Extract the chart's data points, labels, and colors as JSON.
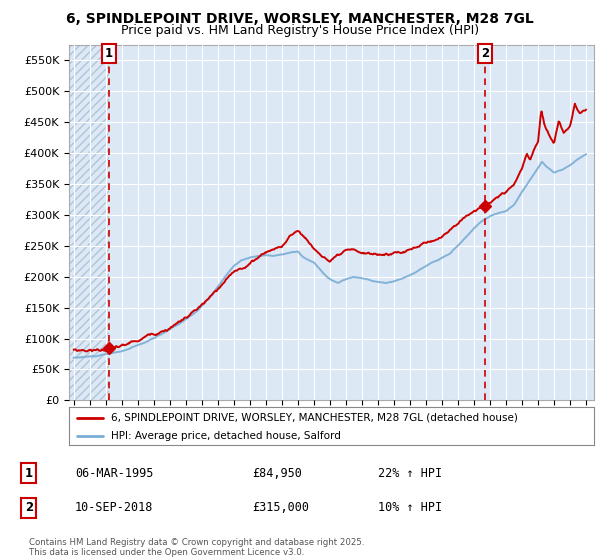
{
  "title1": "6, SPINDLEPOINT DRIVE, WORSLEY, MANCHESTER, M28 7GL",
  "title2": "Price paid vs. HM Land Registry's House Price Index (HPI)",
  "ylabel_ticks": [
    "£0",
    "£50K",
    "£100K",
    "£150K",
    "£200K",
    "£250K",
    "£300K",
    "£350K",
    "£400K",
    "£450K",
    "£500K",
    "£550K"
  ],
  "ytick_values": [
    0,
    50000,
    100000,
    150000,
    200000,
    250000,
    300000,
    350000,
    400000,
    450000,
    500000,
    550000
  ],
  "ylim": [
    0,
    575000
  ],
  "xlim_start": 1992.7,
  "xlim_end": 2025.5,
  "background_color": "#dce8f5",
  "hatch_color": "#c8d8ec",
  "grid_color": "#ffffff",
  "hpi_color": "#7aadd4",
  "price_color": "#cc0000",
  "point1_x": 1995.18,
  "point1_y": 84950,
  "point2_x": 2018.69,
  "point2_y": 315000,
  "annotation1": "1",
  "annotation2": "2",
  "legend_line1": "6, SPINDLEPOINT DRIVE, WORSLEY, MANCHESTER, M28 7GL (detached house)",
  "legend_line2": "HPI: Average price, detached house, Salford",
  "table_row1_num": "1",
  "table_row1_date": "06-MAR-1995",
  "table_row1_price": "£84,950",
  "table_row1_hpi": "22% ↑ HPI",
  "table_row2_num": "2",
  "table_row2_date": "10-SEP-2018",
  "table_row2_price": "£315,000",
  "table_row2_hpi": "10% ↑ HPI",
  "footer": "Contains HM Land Registry data © Crown copyright and database right 2025.\nThis data is licensed under the Open Government Licence v3.0.",
  "title_fontsize": 10,
  "subtitle_fontsize": 9
}
